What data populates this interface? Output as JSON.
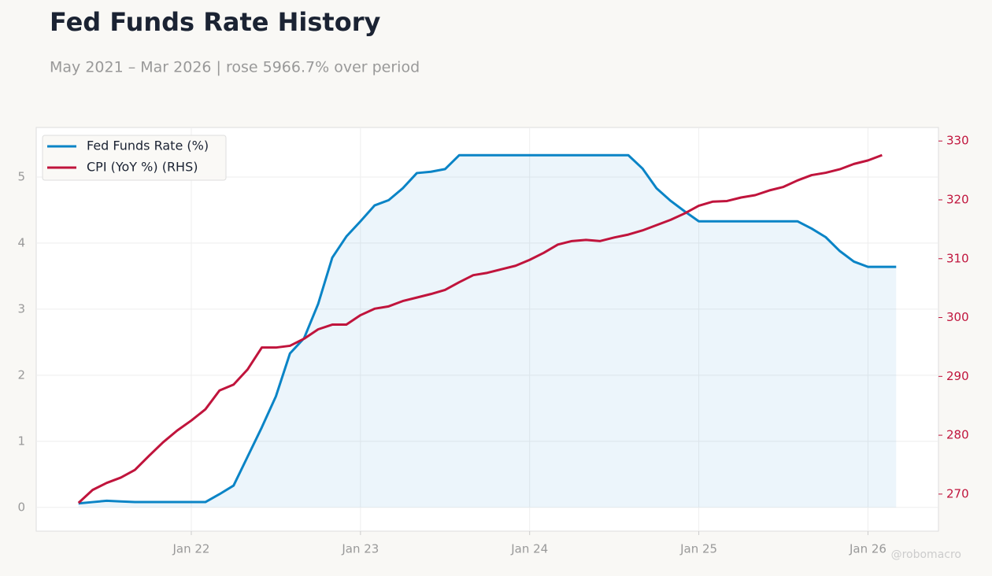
{
  "chart_data": {
    "type": "line",
    "title": "Fed Funds Rate History",
    "subtitle": "May 2021 – Mar 2026 | rose 5966.7% over period",
    "watermark": "@robomacro",
    "x": [
      "2021-05",
      "2021-06",
      "2021-07",
      "2021-08",
      "2021-09",
      "2021-10",
      "2021-11",
      "2021-12",
      "2022-01",
      "2022-02",
      "2022-03",
      "2022-04",
      "2022-05",
      "2022-06",
      "2022-07",
      "2022-08",
      "2022-09",
      "2022-10",
      "2022-11",
      "2022-12",
      "2023-01",
      "2023-02",
      "2023-03",
      "2023-04",
      "2023-05",
      "2023-06",
      "2023-07",
      "2023-08",
      "2023-09",
      "2023-10",
      "2023-11",
      "2023-12",
      "2024-01",
      "2024-02",
      "2024-03",
      "2024-04",
      "2024-05",
      "2024-06",
      "2024-07",
      "2024-08",
      "2024-09",
      "2024-10",
      "2024-11",
      "2024-12",
      "2025-01",
      "2025-02",
      "2025-03",
      "2025-04",
      "2025-05",
      "2025-06",
      "2025-07",
      "2025-08",
      "2025-09",
      "2025-10",
      "2025-11",
      "2025-12",
      "2026-01",
      "2026-02",
      "2026-03"
    ],
    "xlim": [
      "2021-02",
      "2026-06"
    ],
    "xticks": [
      {
        "value": "2022-01",
        "label": "Jan 22"
      },
      {
        "value": "2023-01",
        "label": "Jan 23"
      },
      {
        "value": "2024-01",
        "label": "Jan 24"
      },
      {
        "value": "2025-01",
        "label": "Jan 25"
      },
      {
        "value": "2026-01",
        "label": "Jan 26"
      }
    ],
    "ylim": [
      -0.36,
      5.75
    ],
    "yticks": [
      0,
      1,
      2,
      3,
      4,
      5
    ],
    "y2lim": [
      263.7,
      332.3
    ],
    "y2ticks": [
      270,
      280,
      290,
      300,
      310,
      320,
      330
    ],
    "grid": true,
    "legend": "upper-left",
    "series": [
      {
        "name": "Fed Funds Rate (%)",
        "color": "#0a84c6",
        "fill": true,
        "values": [
          0.06,
          0.08,
          0.1,
          0.09,
          0.08,
          0.08,
          0.08,
          0.08,
          0.08,
          0.08,
          0.2,
          0.33,
          0.77,
          1.21,
          1.68,
          2.33,
          2.56,
          3.08,
          3.78,
          4.1,
          4.33,
          4.57,
          4.65,
          4.83,
          5.06,
          5.08,
          5.12,
          5.33,
          5.33,
          5.33,
          5.33,
          5.33,
          5.33,
          5.33,
          5.33,
          5.33,
          5.33,
          5.33,
          5.33,
          5.33,
          5.13,
          4.83,
          4.64,
          4.48,
          4.33,
          4.33,
          4.33,
          4.33,
          4.33,
          4.33,
          4.33,
          4.33,
          4.22,
          4.09,
          3.88,
          3.72,
          3.64,
          3.64,
          3.64
        ]
      },
      {
        "name": "CPI (YoY %) (RHS)",
        "color": "#c0143c",
        "axis": "y2",
        "values": [
          268.5,
          270.7,
          271.9,
          272.8,
          274.1,
          276.5,
          278.8,
          280.8,
          282.5,
          284.4,
          287.6,
          288.6,
          291.2,
          294.9,
          294.9,
          295.2,
          296.4,
          298.0,
          298.8,
          298.8,
          300.4,
          301.5,
          301.9,
          302.8,
          303.4,
          304.0,
          304.7,
          306.0,
          307.2,
          307.6,
          308.2,
          308.8,
          309.8,
          311.0,
          312.4,
          313.0,
          313.2,
          313.0,
          313.6,
          314.1,
          314.8,
          315.7,
          316.6,
          317.7,
          319.0,
          319.7,
          319.8,
          320.4,
          320.8,
          321.6,
          322.2,
          323.3,
          324.2,
          324.6,
          325.2,
          326.1,
          326.7,
          327.6,
          null
        ]
      }
    ]
  }
}
